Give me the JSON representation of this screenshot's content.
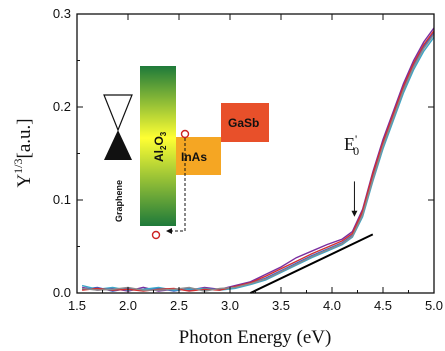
{
  "chart_data": {
    "type": "line",
    "xlabel": "Photon Energy (eV)",
    "ylabel_main": "Y",
    "ylabel_sup": "1/3",
    "ylabel_unit": "[a.u.]",
    "xlim": [
      1.5,
      5.0
    ],
    "ylim": [
      0.0,
      0.3
    ],
    "xticks": [
      1.5,
      2.0,
      2.5,
      3.0,
      3.5,
      4.0,
      4.5,
      5.0
    ],
    "xtick_labels": [
      "1.5",
      "2.0",
      "2.5",
      "3.0",
      "3.5",
      "4.0",
      "4.5",
      "5.0"
    ],
    "yticks": [
      0.0,
      0.1,
      0.2,
      0.3
    ],
    "ytick_labels": [
      "0.0",
      "0.1",
      "0.2",
      "0.3"
    ],
    "grid": false,
    "series": [
      {
        "color": "#7a2ea0",
        "x": [
          1.55,
          1.7,
          1.85,
          2.0,
          2.15,
          2.3,
          2.45,
          2.6,
          2.75,
          2.9,
          3.05,
          3.2,
          3.35,
          3.5,
          3.65,
          3.8,
          3.95,
          4.1,
          4.2,
          4.3,
          4.4,
          4.5,
          4.6,
          4.7,
          4.8,
          4.9,
          5.0
        ],
        "y": [
          0.006,
          0.003,
          0.005,
          0.002,
          0.006,
          0.002,
          0.004,
          0.003,
          0.006,
          0.004,
          0.008,
          0.012,
          0.02,
          0.028,
          0.038,
          0.045,
          0.052,
          0.058,
          0.066,
          0.09,
          0.13,
          0.165,
          0.195,
          0.225,
          0.25,
          0.27,
          0.285
        ]
      },
      {
        "color": "#3a5fc4",
        "x": [
          1.55,
          1.7,
          1.85,
          2.0,
          2.15,
          2.3,
          2.45,
          2.6,
          2.75,
          2.9,
          3.05,
          3.2,
          3.35,
          3.5,
          3.65,
          3.8,
          3.95,
          4.1,
          4.2,
          4.3,
          4.4,
          4.5,
          4.6,
          4.7,
          4.8,
          4.9,
          5.0
        ],
        "y": [
          0.004,
          0.006,
          0.002,
          0.005,
          0.003,
          0.005,
          0.002,
          0.005,
          0.003,
          0.004,
          0.006,
          0.01,
          0.016,
          0.024,
          0.032,
          0.04,
          0.047,
          0.054,
          0.062,
          0.085,
          0.125,
          0.16,
          0.19,
          0.22,
          0.245,
          0.265,
          0.28
        ]
      },
      {
        "color": "#3aa6c8",
        "x": [
          1.55,
          1.7,
          1.85,
          2.0,
          2.15,
          2.3,
          2.45,
          2.6,
          2.75,
          2.9,
          3.05,
          3.2,
          3.35,
          3.5,
          3.65,
          3.8,
          3.95,
          4.1,
          4.2,
          4.3,
          4.4,
          4.5,
          4.6,
          4.7,
          4.8,
          4.9,
          5.0
        ],
        "y": [
          0.008,
          0.004,
          0.006,
          0.003,
          0.004,
          0.006,
          0.003,
          0.004,
          0.005,
          0.003,
          0.005,
          0.009,
          0.014,
          0.022,
          0.03,
          0.038,
          0.045,
          0.052,
          0.06,
          0.082,
          0.12,
          0.155,
          0.185,
          0.215,
          0.24,
          0.26,
          0.275
        ]
      },
      {
        "color": "#d43030",
        "x": [
          1.55,
          1.7,
          1.85,
          2.0,
          2.15,
          2.3,
          2.45,
          2.6,
          2.75,
          2.9,
          3.05,
          3.2,
          3.35,
          3.5,
          3.65,
          3.8,
          3.95,
          4.1,
          4.2,
          4.3,
          4.4,
          4.5,
          4.6,
          4.7,
          4.8,
          4.9,
          5.0
        ],
        "y": [
          0.003,
          0.005,
          0.003,
          0.004,
          0.002,
          0.004,
          0.005,
          0.002,
          0.004,
          0.003,
          0.007,
          0.011,
          0.018,
          0.026,
          0.034,
          0.042,
          0.049,
          0.056,
          0.064,
          0.088,
          0.128,
          0.162,
          0.192,
          0.222,
          0.247,
          0.267,
          0.282
        ]
      },
      {
        "color": "#8c8c8c",
        "x": [
          1.55,
          1.7,
          1.85,
          2.0,
          2.15,
          2.3,
          2.45,
          2.6,
          2.75,
          2.9,
          3.05,
          3.2,
          3.35,
          3.5,
          3.65,
          3.8,
          3.95,
          4.1,
          4.2,
          4.3,
          4.4,
          4.5,
          4.6,
          4.7,
          4.8,
          4.9,
          5.0
        ],
        "y": [
          0.005,
          0.003,
          0.004,
          0.006,
          0.003,
          0.003,
          0.004,
          0.006,
          0.002,
          0.005,
          0.006,
          0.01,
          0.015,
          0.023,
          0.031,
          0.039,
          0.046,
          0.053,
          0.061,
          0.084,
          0.122,
          0.158,
          0.188,
          0.218,
          0.243,
          0.263,
          0.278
        ]
      }
    ],
    "fit_line": {
      "color": "#000000",
      "x": [
        3.2,
        4.4
      ],
      "y": [
        0.0,
        0.063
      ]
    },
    "annotation": {
      "text": "E",
      "sup": "'",
      "sub": "0",
      "arrow_x": 4.22,
      "arrow_y_from": 0.12,
      "arrow_y_to": 0.082
    },
    "inset": {
      "labels": {
        "graphene": "Graphene",
        "oxide_main": "Al",
        "oxide_sub1": "2",
        "oxide_mid": "O",
        "oxide_sub2": "3",
        "inas": "InAs",
        "gasb": "GaSb"
      },
      "colors": {
        "oxide_top": "#1e7a3a",
        "oxide_mid": "#ffff33",
        "oxide_bottom": "#1e7a3a",
        "inas": "#f5a623",
        "gasb": "#e8502a",
        "electron": "#cc2222"
      }
    }
  }
}
